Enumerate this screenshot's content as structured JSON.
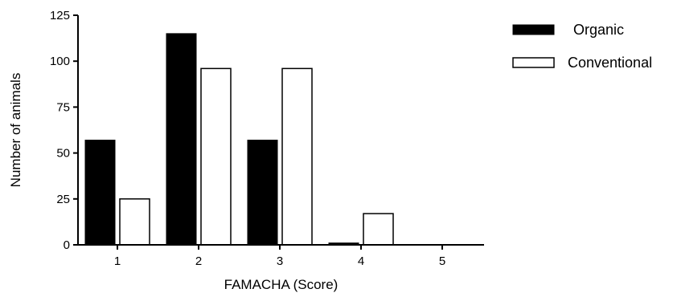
{
  "chart_data": {
    "type": "bar",
    "title": "",
    "xlabel": "FAMACHA (Score)",
    "ylabel": "Number of animals",
    "categories": [
      "1",
      "2",
      "3",
      "4",
      "5"
    ],
    "ylim": [
      0,
      125
    ],
    "yticks": [
      "0",
      "25",
      "50",
      "75",
      "100",
      "125"
    ],
    "grid": false,
    "legend_position": "top-right",
    "series": [
      {
        "name": "Organic",
        "values": [
          57,
          115,
          57,
          1,
          0
        ],
        "color": "#000000",
        "fill": "solid"
      },
      {
        "name": "Conventional",
        "values": [
          25,
          96,
          96,
          17,
          0
        ],
        "color": "#ffffff",
        "fill": "outline"
      }
    ]
  }
}
